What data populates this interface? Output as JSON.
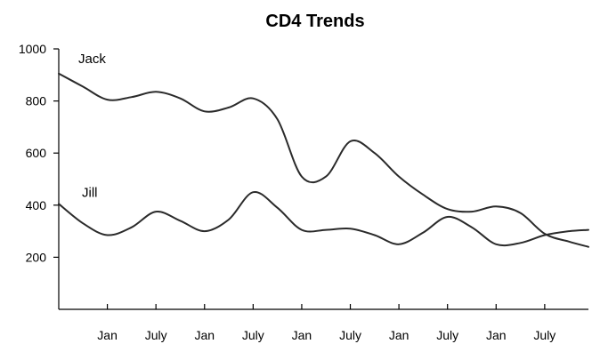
{
  "chart_data": {
    "type": "line",
    "title": "CD4 Trends",
    "xlabel": "",
    "ylabel": "",
    "ylim": [
      0,
      1000
    ],
    "yticks": [
      200,
      400,
      600,
      800,
      1000
    ],
    "x_tick_labels": [
      "Jan",
      "July",
      "Jan",
      "July",
      "Jan",
      "July",
      "Jan",
      "July",
      "Jan",
      "July"
    ],
    "x_tick_positions": [
      1,
      2,
      3,
      4,
      5,
      6,
      7,
      8,
      9,
      10
    ],
    "xlim": [
      0,
      10.9
    ],
    "grid": false,
    "series": [
      {
        "name": "Jack",
        "x": [
          0,
          0.5,
          1,
          1.5,
          2,
          2.5,
          3,
          3.5,
          4,
          4.5,
          5,
          5.5,
          6,
          6.5,
          7,
          7.5,
          8,
          8.5,
          9,
          9.5,
          10,
          10.5,
          10.9
        ],
        "values": [
          905,
          855,
          805,
          815,
          835,
          810,
          760,
          775,
          810,
          730,
          510,
          510,
          645,
          600,
          510,
          440,
          385,
          375,
          395,
          370,
          290,
          260,
          240
        ]
      },
      {
        "name": "Jill",
        "x": [
          0,
          0.5,
          1,
          1.5,
          2,
          2.5,
          3,
          3.5,
          4,
          4.5,
          5,
          5.5,
          6,
          6.5,
          7,
          7.5,
          8,
          8.5,
          9,
          9.5,
          10,
          10.5,
          10.9
        ],
        "values": [
          405,
          330,
          285,
          315,
          375,
          340,
          300,
          345,
          450,
          390,
          305,
          305,
          310,
          285,
          250,
          295,
          355,
          315,
          250,
          255,
          285,
          300,
          305
        ]
      }
    ]
  }
}
